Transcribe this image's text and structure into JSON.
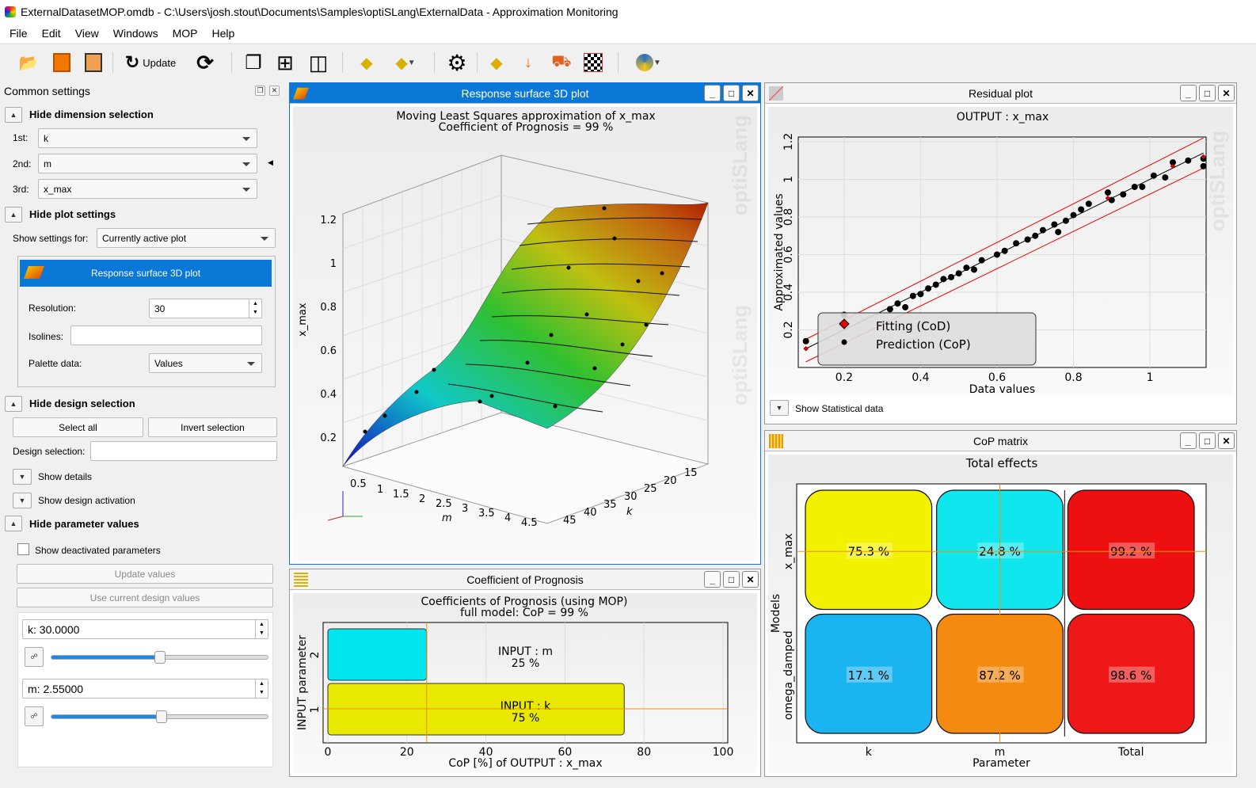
{
  "window": {
    "title": "ExternalDatasetMOP.omdb - C:\\Users\\josh.stout\\Documents\\Samples\\optiSLang\\ExternalData - Approximation Monitoring"
  },
  "menu": [
    "File",
    "Edit",
    "View",
    "Windows",
    "MOP",
    "Help"
  ],
  "toolbar": {
    "update_label": "Update"
  },
  "left": {
    "title": "Common settings",
    "dim_section": "Hide dimension selection",
    "dims": [
      {
        "label": "1st:",
        "value": "k"
      },
      {
        "label": "2nd:",
        "value": "m"
      },
      {
        "label": "3rd:",
        "value": "x_max"
      }
    ],
    "plot_section": "Hide plot settings",
    "show_for_label": "Show settings for:",
    "show_for_value": "Currently active plot",
    "plot_header": "Response surface 3D plot",
    "resolution_label": "Resolution:",
    "resolution_value": "30",
    "isolines_label": "Isolines:",
    "isolines_value": "",
    "palette_label": "Palette data:",
    "palette_value": "Values",
    "design_section": "Hide design selection",
    "select_all": "Select all",
    "invert_selection": "Invert selection",
    "design_sel_label": "Design selection:",
    "design_sel_value": "",
    "show_details": "Show details",
    "show_design_activation": "Show design activation",
    "param_section": "Hide parameter values",
    "show_deactivated": "Show deactivated parameters",
    "show_deactivated_checked": false,
    "update_values": "Update values",
    "use_current": "Use current design values",
    "params": [
      {
        "value": "k: 30.0000",
        "slider": 0.5
      },
      {
        "value": "m: 2.55000",
        "slider": 0.51
      }
    ]
  },
  "surface": {
    "title": "Response surface 3D plot",
    "heading1": "Moving Least Squares  approximation of x_max",
    "heading2": "Coefficient of Prognosis = 99 %",
    "zlabel": "x_max",
    "xlabel": "m",
    "ylabel": "k",
    "zticks": [
      "0.2",
      "0.4",
      "0.6",
      "0.8",
      "1",
      "1.2"
    ],
    "xticks": [
      "0.5",
      "1",
      "1.5",
      "2",
      "2.5",
      "3",
      "3.5",
      "4",
      "4.5"
    ],
    "yticks": [
      "15",
      "20",
      "25",
      "30",
      "35",
      "40",
      "45"
    ]
  },
  "residual": {
    "title": "Residual plot",
    "show_stats": "Show Statistical data"
  },
  "cop": {
    "title": "Coefficient of Prognosis"
  },
  "matrix": {
    "title": "CoP matrix"
  },
  "watermark": "optiSLang",
  "chart_data": [
    {
      "type": "scatter",
      "title": "OUTPUT : x_max",
      "xlabel": "Data values",
      "ylabel": "Approximated values",
      "xlim": [
        0.08,
        1.147
      ],
      "ylim": [
        0.0,
        1.225
      ],
      "xticks": [
        0.2,
        0.4,
        0.6,
        0.8,
        1
      ],
      "yticks": [
        0.2,
        0.4,
        0.6,
        0.8,
        1,
        1.2
      ],
      "legend": [
        "Fitting (CoD)",
        "Prediction (CoP)"
      ],
      "legend_position": "bottom-left",
      "points": [
        [
          0.1,
          0.14
        ],
        [
          0.2,
          0.28
        ],
        [
          0.32,
          0.31
        ],
        [
          0.34,
          0.34
        ],
        [
          0.36,
          0.32
        ],
        [
          0.38,
          0.38
        ],
        [
          0.4,
          0.39
        ],
        [
          0.42,
          0.42
        ],
        [
          0.44,
          0.44
        ],
        [
          0.46,
          0.47
        ],
        [
          0.48,
          0.48
        ],
        [
          0.5,
          0.5
        ],
        [
          0.52,
          0.53
        ],
        [
          0.54,
          0.52
        ],
        [
          0.56,
          0.57
        ],
        [
          0.6,
          0.6
        ],
        [
          0.62,
          0.62
        ],
        [
          0.65,
          0.66
        ],
        [
          0.68,
          0.68
        ],
        [
          0.7,
          0.7
        ],
        [
          0.72,
          0.73
        ],
        [
          0.75,
          0.76
        ],
        [
          0.76,
          0.72
        ],
        [
          0.78,
          0.78
        ],
        [
          0.8,
          0.81
        ],
        [
          0.82,
          0.84
        ],
        [
          0.84,
          0.87
        ],
        [
          0.89,
          0.93
        ],
        [
          0.9,
          0.89
        ],
        [
          0.93,
          0.92
        ],
        [
          0.96,
          0.96
        ],
        [
          0.98,
          0.96
        ],
        [
          1.01,
          1.02
        ],
        [
          1.04,
          1.01
        ],
        [
          1.06,
          1.09
        ],
        [
          1.1,
          1.1
        ],
        [
          1.14,
          1.07
        ],
        [
          1.14,
          1.11
        ]
      ]
    },
    {
      "type": "bar",
      "title": "Coefficients of Prognosis (using MOP)",
      "subtitle": "full model: CoP = 99 %",
      "xlabel": "CoP [%] of OUTPUT : x_max",
      "ylabel": "INPUT parameter",
      "xlim": [
        0,
        100
      ],
      "xticks": [
        0,
        20,
        40,
        60,
        80,
        100
      ],
      "bars": [
        {
          "index": "2",
          "label": "INPUT : m",
          "value": 25,
          "text": "25 %",
          "color": "#00e5ee"
        },
        {
          "index": "1",
          "label": "INPUT : k",
          "value": 75,
          "text": "75 %",
          "color": "#e8e800"
        }
      ]
    },
    {
      "type": "heatmap",
      "title": "Total effects",
      "xlabel": "Parameter",
      "ylabel": "Models",
      "columns": [
        "k",
        "m",
        "Total"
      ],
      "rows": [
        "x_max",
        "omega_damped"
      ],
      "values": [
        [
          75.3,
          24.8,
          99.2
        ],
        [
          17.1,
          87.2,
          98.6
        ]
      ],
      "labels": [
        [
          "75.3 %",
          "24.8 %",
          "99.2 %"
        ],
        [
          "17.1 %",
          "87.2 %",
          "98.6 %"
        ]
      ],
      "colors": [
        [
          "#f2f200",
          "#10e6ee",
          "#ee1010"
        ],
        [
          "#1ab4f0",
          "#f48a10",
          "#ee1818"
        ]
      ]
    }
  ]
}
